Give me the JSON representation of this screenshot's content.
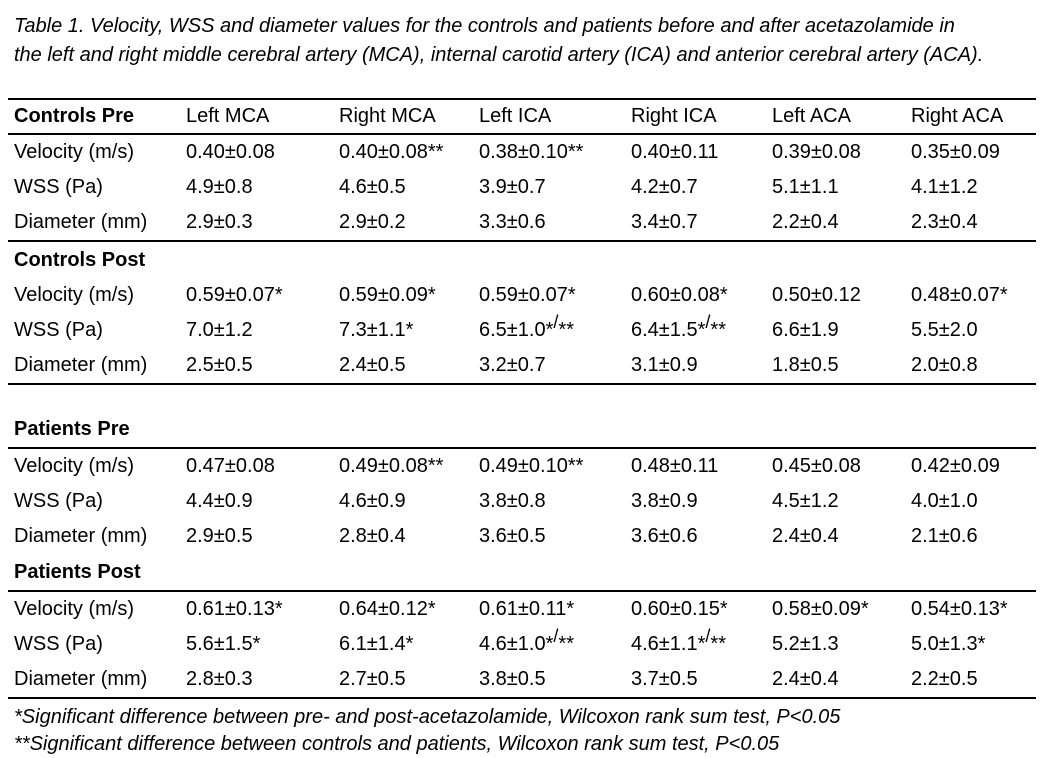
{
  "caption_lines": [
    "Table 1. Velocity, WSS and diameter values for the controls and patients before and after acetazolamide in",
    "the left and right middle cerebral artery (MCA), internal carotid artery (ICA) and anterior cerebral artery (ACA)."
  ],
  "table": {
    "header": [
      "Controls Pre",
      "Left MCA",
      "Right MCA",
      "Left ICA",
      "Right ICA",
      "Left ACA",
      "Right ACA"
    ],
    "sections": [
      {
        "label": "Controls Pre",
        "label_in_header": true,
        "gap_before": false,
        "rule_above_label": false,
        "rule_below_label": false,
        "rule_below_rows": false,
        "rows": [
          {
            "label": "Velocity (m/s)",
            "values": [
              "0.40±0.08",
              "0.40±0.08**",
              "0.38±0.10**",
              "0.40±0.11",
              "0.39±0.08",
              "0.35±0.09"
            ]
          },
          {
            "label": "WSS (Pa)",
            "values": [
              "4.9±0.8",
              "4.6±0.5",
              "3.9±0.7",
              "4.2±0.7",
              "5.1±1.1",
              "4.1±1.2"
            ]
          },
          {
            "label": "Diameter (mm)",
            "values": [
              "2.9±0.3",
              "2.9±0.2",
              "3.3±0.6",
              "3.4±0.7",
              "2.2±0.4",
              "2.3±0.4"
            ]
          }
        ]
      },
      {
        "label": "Controls Post",
        "label_in_header": false,
        "gap_before": false,
        "rule_above_label": true,
        "rule_below_label": false,
        "rule_below_rows": true,
        "rows": [
          {
            "label": "Velocity (m/s)",
            "values": [
              "0.59±0.07*",
              "0.59±0.09*",
              "0.59±0.07*",
              "0.60±0.08*",
              "0.50±0.12",
              "0.48±0.07*"
            ]
          },
          {
            "label": "WSS (Pa)",
            "values": [
              "7.0±1.2",
              "7.3±1.1*",
              "6.5±1.0*/**",
              "6.4±1.5*/**",
              "6.6±1.9",
              "5.5±2.0"
            ]
          },
          {
            "label": "Diameter (mm)",
            "values": [
              "2.5±0.5",
              "2.4±0.5",
              "3.2±0.7",
              "3.1±0.9",
              "1.8±0.5",
              "2.0±0.8"
            ]
          }
        ]
      },
      {
        "label": "Patients Pre",
        "label_in_header": false,
        "gap_before": true,
        "rule_above_label": false,
        "rule_below_label": true,
        "rule_below_rows": false,
        "rows": [
          {
            "label": "Velocity (m/s)",
            "values": [
              "0.47±0.08",
              "0.49±0.08**",
              "0.49±0.10**",
              "0.48±0.11",
              "0.45±0.08",
              "0.42±0.09"
            ]
          },
          {
            "label": "WSS (Pa)",
            "values": [
              "4.4±0.9",
              "4.6±0.9",
              "3.8±0.8",
              "3.8±0.9",
              "4.5±1.2",
              "4.0±1.0"
            ]
          },
          {
            "label": "Diameter (mm)",
            "values": [
              "2.9±0.5",
              "2.8±0.4",
              "3.6±0.5",
              "3.6±0.6",
              "2.4±0.4",
              "2.1±0.6"
            ]
          }
        ]
      },
      {
        "label": "Patients Post",
        "label_in_header": false,
        "gap_before": false,
        "rule_above_label": false,
        "rule_below_label": true,
        "rule_below_rows": true,
        "rows": [
          {
            "label": "Velocity (m/s)",
            "values": [
              "0.61±0.13*",
              "0.64±0.12*",
              "0.61±0.11*",
              "0.60±0.15*",
              "0.58±0.09*",
              "0.54±0.13*"
            ]
          },
          {
            "label": "WSS (Pa)",
            "values": [
              "5.6±1.5*",
              "6.1±1.4*",
              "4.6±1.0*/**",
              "4.6±1.1*/**",
              "5.2±1.3",
              "5.0±1.3*"
            ]
          },
          {
            "label": "Diameter (mm)",
            "values": [
              "2.8±0.3",
              "2.7±0.5",
              "3.8±0.5",
              "3.7±0.5",
              "2.4±0.4",
              "2.2±0.5"
            ]
          }
        ]
      }
    ]
  },
  "footnotes": [
    "*Significant difference between pre- and post-acetazolamide, Wilcoxon rank sum test, P<0.05",
    "**Significant difference between controls and patients, Wilcoxon rank sum test, P<0.05"
  ]
}
